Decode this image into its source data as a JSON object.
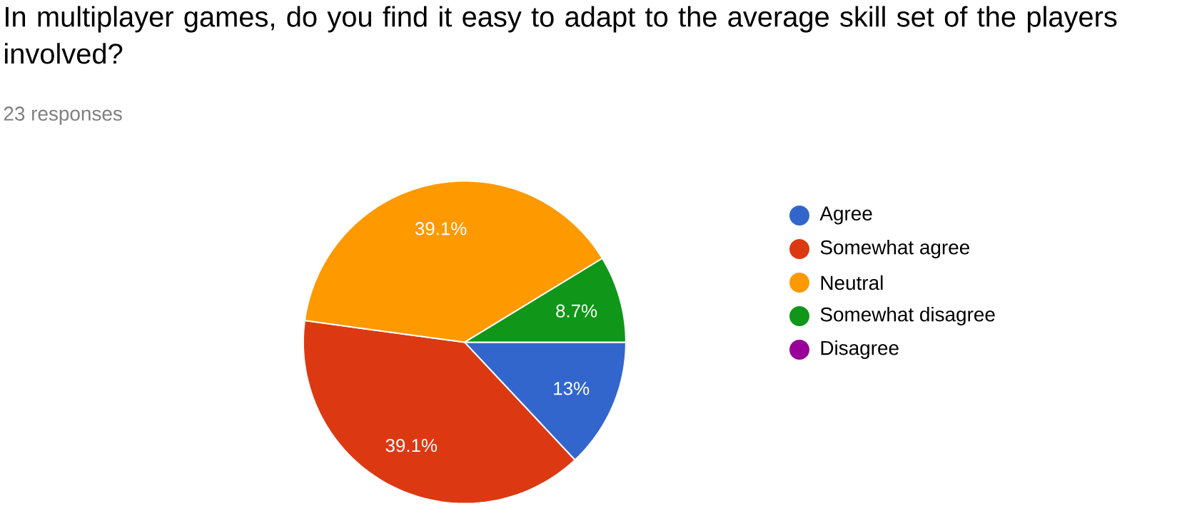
{
  "chart_data": {
    "type": "pie",
    "title": "In multiplayer games, do you find it easy to adapt to the average skill set of the players involved?",
    "subtitle": "23 responses",
    "categories": [
      "Agree",
      "Somewhat agree",
      "Neutral",
      "Somewhat disagree",
      "Disagree"
    ],
    "values": [
      13,
      39.1,
      39.1,
      8.7,
      0
    ],
    "colors": [
      "#3366cc",
      "#dc3912",
      "#ff9900",
      "#109618",
      "#990099"
    ],
    "value_labels": [
      "13%",
      "39.1%",
      "39.1%",
      "8.7%",
      null
    ],
    "legend": "right"
  }
}
